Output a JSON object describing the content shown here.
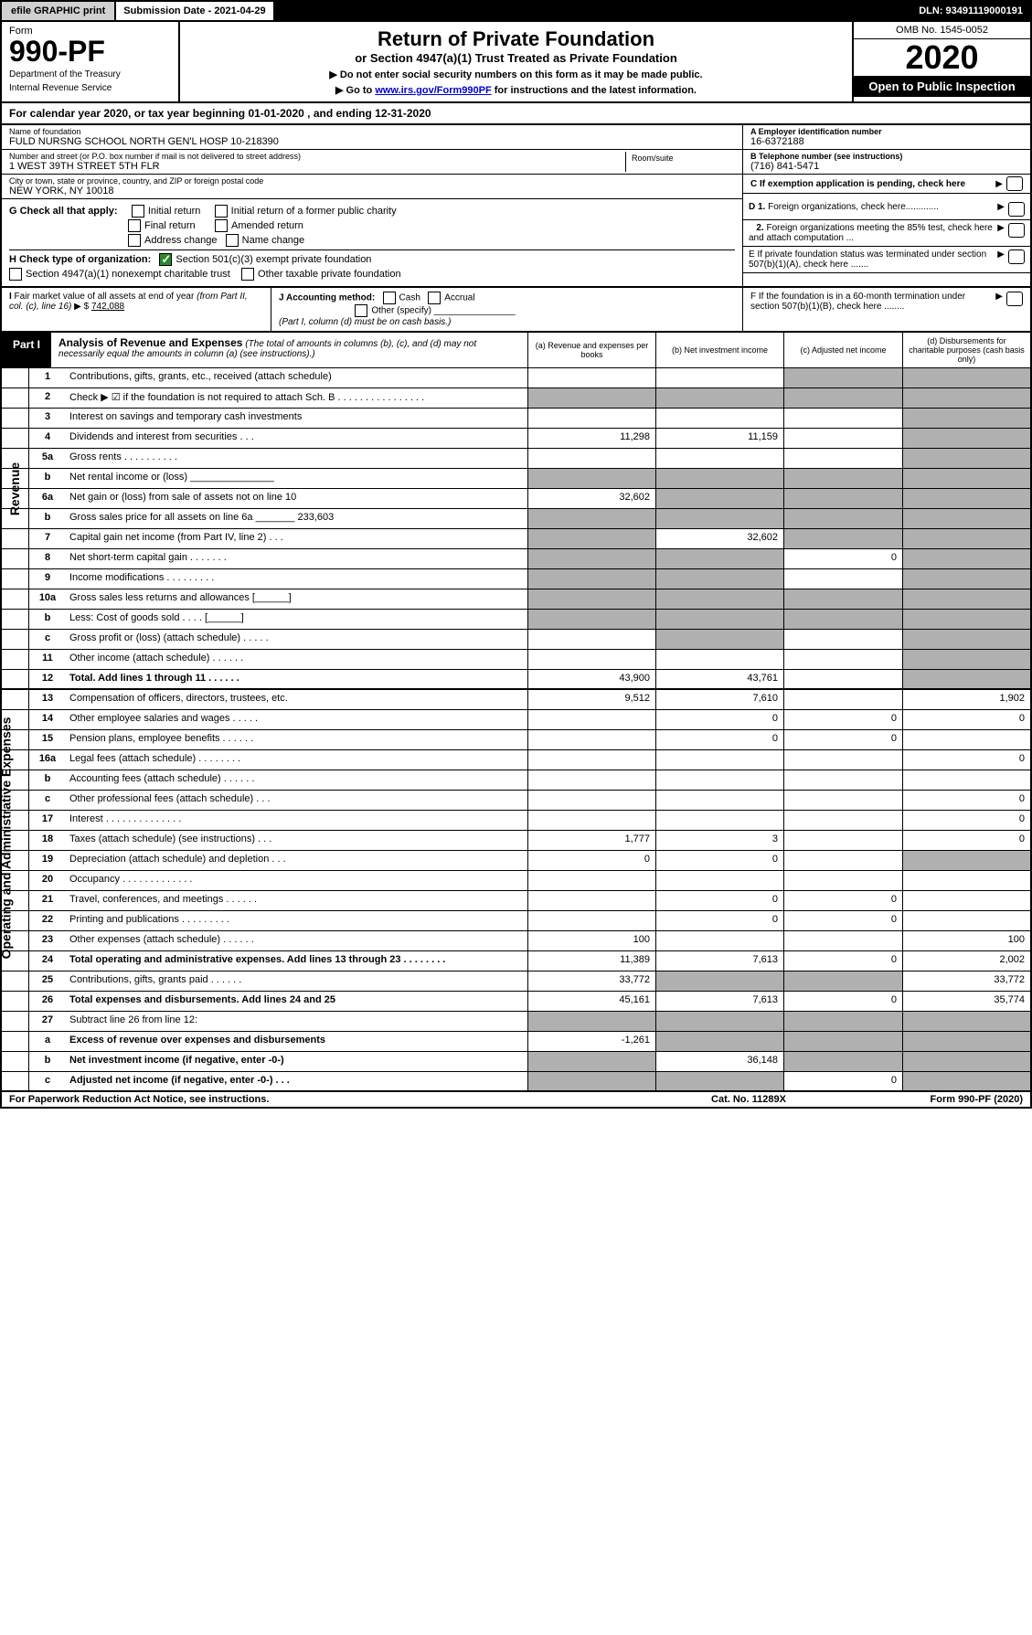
{
  "top": {
    "efile": "efile GRAPHIC print",
    "sub_date_label": "Submission Date - 2021-04-29",
    "dln": "DLN: 93491119000191"
  },
  "header": {
    "form_label": "Form",
    "form_number": "990-PF",
    "dept1": "Department of the Treasury",
    "dept2": "Internal Revenue Service",
    "title": "Return of Private Foundation",
    "sub_title": "or Section 4947(a)(1) Trust Treated as Private Foundation",
    "note1": "▶ Do not enter social security numbers on this form as it may be made public.",
    "note2_pre": "▶ Go to ",
    "note2_link": "www.irs.gov/Form990PF",
    "note2_post": " for instructions and the latest information.",
    "omb": "OMB No. 1545-0052",
    "year": "2020",
    "open": "Open to Public Inspection"
  },
  "cal_year": "For calendar year 2020, or tax year beginning 01-01-2020                         , and ending 12-31-2020",
  "info": {
    "name_lbl": "Name of foundation",
    "name_val": "FULD NURSNG SCHOOL NORTH GEN'L HOSP 10-218390",
    "addr_lbl": "Number and street (or P.O. box number if mail is not delivered to street address)",
    "addr_val": "1 WEST 39TH STREET 5TH FLR",
    "room_lbl": "Room/suite",
    "city_lbl": "City or town, state or province, country, and ZIP or foreign postal code",
    "city_val": "NEW YORK, NY  10018",
    "a_lbl": "A Employer identification number",
    "a_val": "16-6372188",
    "b_lbl": "B Telephone number (see instructions)",
    "b_val": "(716) 841-5471",
    "c_lbl": "C If exemption application is pending, check here"
  },
  "g": {
    "label": "G Check all that apply:",
    "initial": "Initial return",
    "initial_former": "Initial return of a former public charity",
    "final": "Final return",
    "amended": "Amended return",
    "addr_change": "Address change",
    "name_change": "Name change"
  },
  "h": {
    "label": "H Check type of organization:",
    "opt1": "Section 501(c)(3) exempt private foundation",
    "opt2": "Section 4947(a)(1) nonexempt charitable trust",
    "opt3": "Other taxable private foundation"
  },
  "d": {
    "d1": "D 1. Foreign organizations, check here.............",
    "d2": "2. Foreign organizations meeting the 85% test, check here and attach computation ...",
    "e": "E  If private foundation status was terminated under section 507(b)(1)(A), check here .......",
    "f": "F  If the foundation is in a 60-month termination under section 507(b)(1)(B), check here ........"
  },
  "i": {
    "label": "I Fair market value of all assets at end of year (from Part II, col. (c), line 16) ▶ $",
    "val": " 742,088"
  },
  "j": {
    "label": "J Accounting method:",
    "cash": "Cash",
    "accrual": "Accrual",
    "other": "Other (specify)",
    "note": "(Part I, column (d) must be on cash basis.)"
  },
  "part1": {
    "label": "Part I",
    "title": "Analysis of Revenue and Expenses",
    "desc": " (The total of amounts in columns (b), (c), and (d) may not necessarily equal the amounts in column (a) (see instructions).)",
    "col_a": "(a)    Revenue and expenses per books",
    "col_b": "(b)   Net investment income",
    "col_c": "(c)   Adjusted net income",
    "col_d": "(d)   Disbursements for charitable purposes (cash basis only)"
  },
  "side_revenue": "Revenue",
  "side_expenses": "Operating and Administrative Expenses",
  "rows": [
    {
      "n": "1",
      "d": "Contributions, gifts, grants, etc., received (attach schedule)",
      "a": "",
      "b": "",
      "c": "shaded",
      "dcell": "shaded"
    },
    {
      "n": "2",
      "d": "Check ▶ ☑ if the foundation is not required to attach Sch. B   .  .  .  .  .  .  .  .  .  .  .  .  .  .  .  .",
      "a": "shaded",
      "b": "shaded",
      "c": "shaded",
      "dcell": "shaded"
    },
    {
      "n": "3",
      "d": "Interest on savings and temporary cash investments",
      "a": "",
      "b": "",
      "c": "",
      "dcell": "shaded"
    },
    {
      "n": "4",
      "d": "Dividends and interest from securities   .   .   .",
      "a": "11,298",
      "b": "11,159",
      "c": "",
      "dcell": "shaded"
    },
    {
      "n": "5a",
      "d": "Gross rents   .   .   .   .   .   .   .   .   .   .",
      "a": "",
      "b": "",
      "c": "",
      "dcell": "shaded"
    },
    {
      "n": "b",
      "d": "Net rental income or (loss)   _______________",
      "a": "shaded",
      "b": "shaded",
      "c": "shaded",
      "dcell": "shaded"
    },
    {
      "n": "6a",
      "d": "Net gain or (loss) from sale of assets not on line 10",
      "a": "32,602",
      "b": "shaded",
      "c": "shaded",
      "dcell": "shaded"
    },
    {
      "n": "b",
      "d": "Gross sales price for all assets on line 6a _______ 233,603",
      "a": "shaded",
      "b": "shaded",
      "c": "shaded",
      "dcell": "shaded"
    },
    {
      "n": "7",
      "d": "Capital gain net income (from Part IV, line 2)   .   .   .",
      "a": "shaded",
      "b": "32,602",
      "c": "shaded",
      "dcell": "shaded"
    },
    {
      "n": "8",
      "d": "Net short-term capital gain   .   .   .   .   .   .   .",
      "a": "shaded",
      "b": "shaded",
      "c": "0",
      "dcell": "shaded"
    },
    {
      "n": "9",
      "d": "Income modifications   .   .   .   .   .   .   .   .   .",
      "a": "shaded",
      "b": "shaded",
      "c": "",
      "dcell": "shaded"
    },
    {
      "n": "10a",
      "d": "Gross sales less returns and allowances   [______]",
      "a": "shaded",
      "b": "shaded",
      "c": "shaded",
      "dcell": "shaded"
    },
    {
      "n": "b",
      "d": "Less: Cost of goods sold   .   .   .   .   [______]",
      "a": "shaded",
      "b": "shaded",
      "c": "shaded",
      "dcell": "shaded"
    },
    {
      "n": "c",
      "d": "Gross profit or (loss) (attach schedule)   .   .   .   .   .",
      "a": "",
      "b": "shaded",
      "c": "",
      "dcell": "shaded"
    },
    {
      "n": "11",
      "d": "Other income (attach schedule)   .   .   .   .   .   .",
      "a": "",
      "b": "",
      "c": "",
      "dcell": "shaded"
    },
    {
      "n": "12",
      "d": "Total. Add lines 1 through 11   .   .   .   .   .   .",
      "bold": true,
      "a": "43,900",
      "b": "43,761",
      "c": "",
      "dcell": "shaded"
    },
    {
      "n": "13",
      "d": "Compensation of officers, directors, trustees, etc.",
      "a": "9,512",
      "b": "7,610",
      "c": "",
      "dcell": "1,902"
    },
    {
      "n": "14",
      "d": "Other employee salaries and wages   .   .   .   .   .",
      "a": "",
      "b": "0",
      "c": "0",
      "dcell": "0"
    },
    {
      "n": "15",
      "d": "Pension plans, employee benefits   .   .   .   .   .   .",
      "a": "",
      "b": "0",
      "c": "0",
      "dcell": ""
    },
    {
      "n": "16a",
      "d": "Legal fees (attach schedule)   .   .   .   .   .   .   .   .",
      "a": "",
      "b": "",
      "c": "",
      "dcell": "0"
    },
    {
      "n": "b",
      "d": "Accounting fees (attach schedule)   .   .   .   .   .   .",
      "a": "",
      "b": "",
      "c": "",
      "dcell": ""
    },
    {
      "n": "c",
      "d": "Other professional fees (attach schedule)   .   .   .",
      "a": "",
      "b": "",
      "c": "",
      "dcell": "0"
    },
    {
      "n": "17",
      "d": "Interest   .   .   .   .   .   .   .   .   .   .   .   .   .   .",
      "a": "",
      "b": "",
      "c": "",
      "dcell": "0"
    },
    {
      "n": "18",
      "d": "Taxes (attach schedule) (see instructions)   .   .   .",
      "a": "1,777",
      "b": "3",
      "c": "",
      "dcell": "0"
    },
    {
      "n": "19",
      "d": "Depreciation (attach schedule) and depletion   .   .   .",
      "a": "0",
      "b": "0",
      "c": "",
      "dcell": "shaded"
    },
    {
      "n": "20",
      "d": "Occupancy   .   .   .   .   .   .   .   .   .   .   .   .   .",
      "a": "",
      "b": "",
      "c": "",
      "dcell": ""
    },
    {
      "n": "21",
      "d": "Travel, conferences, and meetings   .   .   .   .   .   .",
      "a": "",
      "b": "0",
      "c": "0",
      "dcell": ""
    },
    {
      "n": "22",
      "d": "Printing and publications   .   .   .   .   .   .   .   .   .",
      "a": "",
      "b": "0",
      "c": "0",
      "dcell": ""
    },
    {
      "n": "23",
      "d": "Other expenses (attach schedule)   .   .   .   .   .   .",
      "a": "100",
      "b": "",
      "c": "",
      "dcell": "100"
    },
    {
      "n": "24",
      "d": "Total operating and administrative expenses. Add lines 13 through 23   .   .   .   .   .   .   .   .",
      "bold": true,
      "a": "11,389",
      "b": "7,613",
      "c": "0",
      "dcell": "2,002"
    },
    {
      "n": "25",
      "d": "Contributions, gifts, grants paid   .   .   .   .   .   .",
      "a": "33,772",
      "b": "shaded",
      "c": "shaded",
      "dcell": "33,772"
    },
    {
      "n": "26",
      "d": "Total expenses and disbursements. Add lines 24 and 25",
      "bold": true,
      "a": "45,161",
      "b": "7,613",
      "c": "0",
      "dcell": "35,774"
    },
    {
      "n": "27",
      "d": "Subtract line 26 from line 12:",
      "a": "shaded",
      "b": "shaded",
      "c": "shaded",
      "dcell": "shaded"
    },
    {
      "n": "a",
      "d": "Excess of revenue over expenses and disbursements",
      "bold": true,
      "a": "-1,261",
      "b": "shaded",
      "c": "shaded",
      "dcell": "shaded"
    },
    {
      "n": "b",
      "d": "Net investment income (if negative, enter -0-)",
      "bold": true,
      "a": "shaded",
      "b": "36,148",
      "c": "shaded",
      "dcell": "shaded"
    },
    {
      "n": "c",
      "d": "Adjusted net income (if negative, enter -0-)   .   .   .",
      "bold": true,
      "a": "shaded",
      "b": "shaded",
      "c": "0",
      "dcell": "shaded"
    }
  ],
  "footer": {
    "left": "For Paperwork Reduction Act Notice, see instructions.",
    "mid": "Cat. No. 11289X",
    "right": "Form 990-PF (2020)"
  },
  "colors": {
    "shaded": "#b0b0b0",
    "link": "#0000cc",
    "check": "#2a8a2a"
  }
}
